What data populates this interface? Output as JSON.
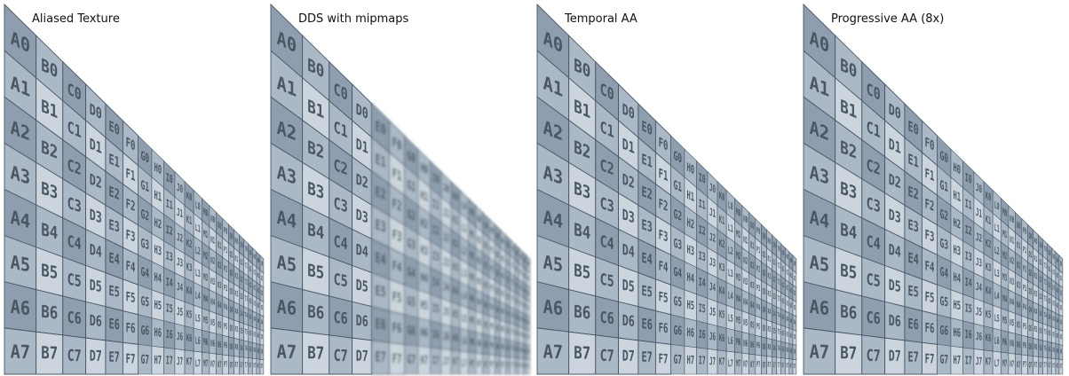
{
  "panels": [
    {
      "title": "Aliased Texture",
      "blur": 0
    },
    {
      "title": "DDS with mipmaps",
      "blur": 1.2
    },
    {
      "title": "Temporal AA",
      "blur": 0.35
    },
    {
      "title": "Progressive AA (8x)",
      "blur": 0.25
    }
  ],
  "texture": {
    "columns": [
      "A",
      "B",
      "C",
      "D",
      "E",
      "F",
      "G",
      "H",
      "I",
      "J",
      "K",
      "L",
      "M",
      "N",
      "O",
      "P",
      "Q",
      "R",
      "S",
      "T",
      "U",
      "V",
      "W",
      "X"
    ],
    "rows": [
      "0",
      "1",
      "2",
      "3",
      "4",
      "5",
      "6",
      "7"
    ],
    "colors": {
      "dark": "#8e9eaf",
      "mid": "#abb8c5",
      "light": "#ccd5dd",
      "line": "#4a5868",
      "text": "#4a5664"
    }
  }
}
